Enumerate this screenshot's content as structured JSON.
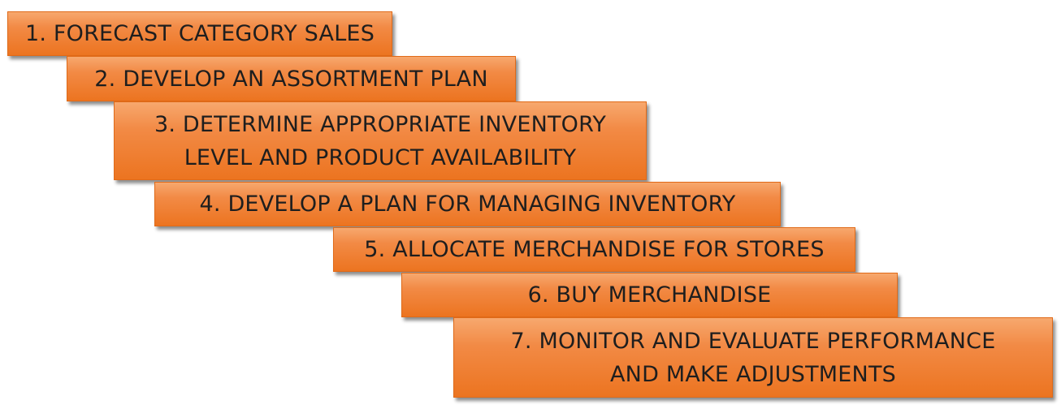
{
  "steps": [
    {
      "label": "1. FORECAST CATEGORY SALES"
    },
    {
      "label": "2. DEVELOP AN ASSORTMENT PLAN"
    },
    {
      "line1": "3. DETERMINE APPROPRIATE INVENTORY",
      "line2": "LEVEL AND PRODUCT AVAILABILITY"
    },
    {
      "label": "4. DEVELOP A PLAN FOR MANAGING INVENTORY"
    },
    {
      "label": "5. ALLOCATE MERCHANDISE FOR STORES"
    },
    {
      "label": "6. BUY MERCHANDISE"
    },
    {
      "line1": "7. MONITOR AND EVALUATE PERFORMANCE",
      "line2": "AND MAKE ADJUSTMENTS"
    }
  ],
  "colors": {
    "box_top": "#f7a86e",
    "box_bottom": "#ec7420",
    "text": "#1e1e1e",
    "background": "#ffffff"
  }
}
